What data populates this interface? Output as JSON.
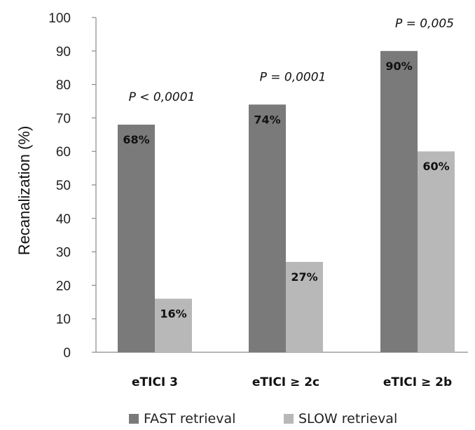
{
  "chart_data": {
    "type": "bar",
    "categories": [
      "eTICI 3",
      "eTICI ≥ 2c",
      "eTICI ≥ 2b"
    ],
    "series": [
      {
        "name": "FAST retrieval",
        "values": [
          68,
          74,
          90
        ],
        "labels": [
          "68%",
          "74%",
          "90%"
        ],
        "color": "#7a7a7a"
      },
      {
        "name": "SLOW retrieval",
        "values": [
          16,
          27,
          60
        ],
        "labels": [
          "16%",
          "27%",
          "60%"
        ],
        "color": "#b8b8b8"
      }
    ],
    "annotations": [
      "P < 0,0001",
      "P = 0,0001",
      "P = 0,005"
    ],
    "ylabel": "Recanalization (%)",
    "xlabel": "",
    "ylim": [
      0,
      100
    ],
    "yticks": [
      0,
      10,
      20,
      30,
      40,
      50,
      60,
      70,
      80,
      90,
      100
    ],
    "grid": false,
    "legend": "bottom"
  }
}
